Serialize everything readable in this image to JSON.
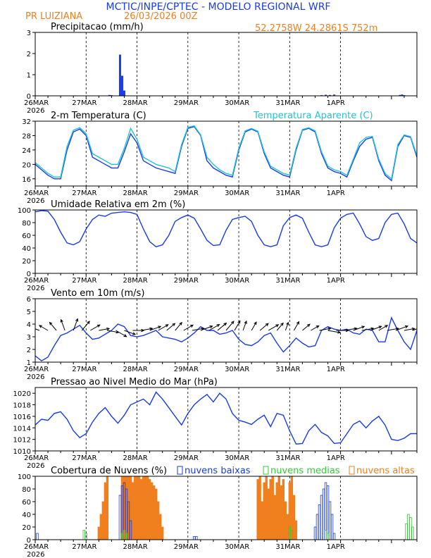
{
  "header": {
    "title": "MCTIC/INPE/CPTEC - MODELO REGIONAL WRF",
    "station": "PR LUIZIANA",
    "run": "26/03/2026 00Z",
    "coords": "52.2758W  24.2861S  752m"
  },
  "colors": {
    "title": "#1a3be8",
    "orange": "#f07f1e",
    "blue": "#1a3be8",
    "cyan": "#22c2d8",
    "green": "#33cc33",
    "black": "#000000"
  },
  "x_axis": {
    "range_hours": [
      0,
      180
    ],
    "ticks": [
      {
        "h": 0,
        "label": "26MAR",
        "year": "2026"
      },
      {
        "h": 24,
        "label": "27MAR"
      },
      {
        "h": 48,
        "label": "28MAR"
      },
      {
        "h": 72,
        "label": "29MAR"
      },
      {
        "h": 96,
        "label": "30MAR"
      },
      {
        "h": 120,
        "label": "31MAR"
      },
      {
        "h": 144,
        "label": "1APR"
      }
    ]
  },
  "chart_data": [
    {
      "type": "bar",
      "key": "precip",
      "title": "Precipitacao (mm/h)",
      "ylim": [
        0,
        3
      ],
      "yticks": [
        0,
        1,
        2,
        3
      ],
      "x_hours": [
        19,
        35,
        36,
        40,
        41,
        42,
        135,
        137,
        139,
        141,
        172,
        173,
        174
      ],
      "values": [
        0.02,
        0.04,
        0.03,
        1.95,
        0.95,
        0.25,
        0.03,
        0.05,
        0.04,
        0.06,
        0.04,
        0.06,
        0.03
      ]
    },
    {
      "type": "line",
      "key": "temp",
      "title": "2-m Temperatura (C)",
      "legend": "Temperatura Aparente (C)",
      "ylim": [
        14,
        32
      ],
      "yticks": [
        16,
        20,
        24,
        28,
        32
      ],
      "x_hours": [
        0,
        3,
        6,
        9,
        12,
        15,
        18,
        21,
        24,
        27,
        30,
        33,
        36,
        39,
        42,
        45,
        48,
        51,
        54,
        57,
        60,
        63,
        66,
        69,
        72,
        75,
        78,
        81,
        84,
        87,
        90,
        93,
        96,
        99,
        102,
        105,
        108,
        111,
        114,
        117,
        120,
        123,
        126,
        129,
        132,
        135,
        138,
        141,
        144,
        147,
        150,
        153,
        156,
        159,
        162,
        165,
        168,
        171,
        174,
        177,
        180
      ],
      "series": [
        {
          "name": "Temperatura",
          "color": "blue",
          "values": [
            20,
            18.5,
            17,
            16,
            16,
            24,
            29,
            29.8,
            28,
            22,
            21,
            20,
            19,
            19,
            23.5,
            28.5,
            26,
            21,
            20,
            19,
            18.5,
            18,
            17.5,
            25,
            30,
            30.5,
            28,
            21,
            19,
            18,
            17,
            16.5,
            24,
            29,
            29.8,
            29,
            23,
            19,
            18,
            17,
            16.5,
            24,
            29.5,
            30,
            29,
            23,
            19,
            18,
            17.5,
            16.5,
            21,
            25,
            27,
            27.5,
            21,
            17,
            15.5,
            25,
            28,
            27.5,
            22
          ]
        },
        {
          "name": "Temperatura Aparente",
          "color": "cyan",
          "values": [
            20.5,
            19,
            17.5,
            16.5,
            16.5,
            25,
            29.5,
            30.2,
            28.5,
            23,
            22,
            21,
            20,
            20,
            24.5,
            30,
            27,
            22,
            21,
            20,
            19.5,
            19,
            18,
            25.5,
            30.3,
            30.7,
            28.2,
            22,
            20,
            18.5,
            17.5,
            17,
            24.5,
            29.3,
            30,
            29.2,
            23.5,
            19.5,
            18.5,
            17.5,
            17,
            24.5,
            29.7,
            30.2,
            29.3,
            23.5,
            19.5,
            18.5,
            18,
            17,
            21.5,
            26,
            27.5,
            27.8,
            21.5,
            17.5,
            16,
            25.5,
            28.2,
            27.7,
            22.5
          ]
        }
      ]
    },
    {
      "type": "line",
      "key": "rh",
      "title": "Umidade Relativa em 2m (%)",
      "ylim": [
        0,
        100
      ],
      "yticks": [
        0,
        20,
        40,
        60,
        80,
        100
      ],
      "x_hours": [
        0,
        3,
        6,
        9,
        12,
        15,
        18,
        21,
        24,
        27,
        30,
        33,
        36,
        39,
        42,
        45,
        48,
        51,
        54,
        57,
        60,
        63,
        66,
        69,
        72,
        75,
        78,
        81,
        84,
        87,
        90,
        93,
        96,
        99,
        102,
        105,
        108,
        111,
        114,
        117,
        120,
        123,
        126,
        129,
        132,
        135,
        138,
        141,
        144,
        147,
        150,
        153,
        156,
        159,
        162,
        165,
        168,
        171,
        174,
        177,
        180
      ],
      "series": [
        {
          "name": "Umidade Relativa",
          "color": "blue",
          "values": [
            97,
            99,
            98,
            85,
            65,
            48,
            45,
            50,
            70,
            85,
            92,
            90,
            95,
            96,
            97,
            96,
            93,
            70,
            50,
            42,
            45,
            60,
            82,
            88,
            92,
            87,
            70,
            52,
            44,
            45,
            68,
            85,
            88,
            90,
            82,
            60,
            45,
            42,
            45,
            75,
            88,
            92,
            87,
            65,
            45,
            42,
            45,
            72,
            87,
            93,
            95,
            78,
            58,
            52,
            55,
            80,
            93,
            95,
            78,
            55,
            48
          ]
        }
      ]
    },
    {
      "type": "line",
      "key": "wind",
      "title": "Vento em 10m (m/s)",
      "ylim": [
        1,
        6
      ],
      "yticks": [
        1,
        2,
        3,
        4,
        5,
        6
      ],
      "x_hours": [
        0,
        3,
        6,
        9,
        12,
        15,
        18,
        21,
        24,
        27,
        30,
        33,
        36,
        39,
        42,
        45,
        48,
        51,
        54,
        57,
        60,
        63,
        66,
        69,
        72,
        75,
        78,
        81,
        84,
        87,
        90,
        93,
        96,
        99,
        102,
        105,
        108,
        111,
        114,
        117,
        120,
        123,
        126,
        129,
        132,
        135,
        138,
        141,
        144,
        147,
        150,
        153,
        156,
        159,
        162,
        165,
        168,
        171,
        174,
        177,
        180
      ],
      "series": [
        {
          "name": "Velocidade do vento",
          "color": "blue",
          "values": [
            1.5,
            1.1,
            1.4,
            2.3,
            3.1,
            3.3,
            3.6,
            3.9,
            3.3,
            2.8,
            2.9,
            3.2,
            3.5,
            4.0,
            3.8,
            3.1,
            3.0,
            3.1,
            3.3,
            3.5,
            3.0,
            2.9,
            2.8,
            2.6,
            2.9,
            3.3,
            3.8,
            3.5,
            3.5,
            3.2,
            3.3,
            3.5,
            2.8,
            2.4,
            2.3,
            2.6,
            3.1,
            3.3,
            2.5,
            1.8,
            2.3,
            2.9,
            2.5,
            2.2,
            2.3,
            3.5,
            3.8,
            3.6,
            3.5,
            3.6,
            3.3,
            3.2,
            3.6,
            3.5,
            2.6,
            2.6,
            4.5,
            3.5,
            2.6,
            2.0,
            3.5
          ]
        }
      ],
      "arrow_baseline": 3.5,
      "arrows": [
        {
          "h": 2,
          "dir": 290,
          "spd": 2.2
        },
        {
          "h": 6,
          "dir": 300,
          "spd": 2.5
        },
        {
          "h": 10,
          "dir": 320,
          "spd": 2.8
        },
        {
          "h": 14,
          "dir": 340,
          "spd": 3.2
        },
        {
          "h": 18,
          "dir": 20,
          "spd": 3.6
        },
        {
          "h": 22,
          "dir": 40,
          "spd": 3.4
        },
        {
          "h": 26,
          "dir": 60,
          "spd": 3.0
        },
        {
          "h": 30,
          "dir": 80,
          "spd": 2.8
        },
        {
          "h": 34,
          "dir": 100,
          "spd": 3.2
        },
        {
          "h": 38,
          "dir": 120,
          "spd": 3.6
        },
        {
          "h": 42,
          "dir": 110,
          "spd": 3.3
        },
        {
          "h": 46,
          "dir": 90,
          "spd": 3.0
        },
        {
          "h": 50,
          "dir": 80,
          "spd": 3.1
        },
        {
          "h": 54,
          "dir": 70,
          "spd": 3.3
        },
        {
          "h": 58,
          "dir": 60,
          "spd": 3.2
        },
        {
          "h": 62,
          "dir": 50,
          "spd": 2.9
        },
        {
          "h": 66,
          "dir": 40,
          "spd": 2.7
        },
        {
          "h": 70,
          "dir": 60,
          "spd": 2.9
        },
        {
          "h": 74,
          "dir": 80,
          "spd": 3.4
        },
        {
          "h": 78,
          "dir": 70,
          "spd": 3.7
        },
        {
          "h": 82,
          "dir": 60,
          "spd": 3.4
        },
        {
          "h": 86,
          "dir": 50,
          "spd": 3.2
        },
        {
          "h": 90,
          "dir": 40,
          "spd": 3.4
        },
        {
          "h": 94,
          "dir": 30,
          "spd": 3.0
        },
        {
          "h": 98,
          "dir": 20,
          "spd": 2.5
        },
        {
          "h": 102,
          "dir": 30,
          "spd": 2.4
        },
        {
          "h": 106,
          "dir": 50,
          "spd": 2.9
        },
        {
          "h": 110,
          "dir": 60,
          "spd": 3.2
        },
        {
          "h": 114,
          "dir": 40,
          "spd": 2.4
        },
        {
          "h": 118,
          "dir": 20,
          "spd": 1.9
        },
        {
          "h": 122,
          "dir": 30,
          "spd": 2.6
        },
        {
          "h": 126,
          "dir": 50,
          "spd": 2.4
        },
        {
          "h": 130,
          "dir": 60,
          "spd": 2.2
        },
        {
          "h": 134,
          "dir": 80,
          "spd": 3.2
        },
        {
          "h": 138,
          "dir": 100,
          "spd": 3.7
        },
        {
          "h": 142,
          "dir": 90,
          "spd": 3.5
        },
        {
          "h": 146,
          "dir": 80,
          "spd": 3.5
        },
        {
          "h": 150,
          "dir": 70,
          "spd": 3.3
        },
        {
          "h": 154,
          "dir": 80,
          "spd": 3.4
        },
        {
          "h": 158,
          "dir": 70,
          "spd": 3.4
        },
        {
          "h": 162,
          "dir": 60,
          "spd": 2.6
        },
        {
          "h": 166,
          "dir": 80,
          "spd": 3.2
        },
        {
          "h": 170,
          "dir": 70,
          "spd": 3.8
        },
        {
          "h": 174,
          "dir": 80,
          "spd": 2.8
        },
        {
          "h": 178,
          "dir": 70,
          "spd": 2.4
        }
      ]
    },
    {
      "type": "line",
      "key": "pres",
      "title": "Pressao ao Nivel Medio do Mar (hPa)",
      "ylim": [
        1010,
        1021
      ],
      "yticks": [
        1010,
        1012,
        1014,
        1016,
        1018,
        1020
      ],
      "x_hours": [
        0,
        3,
        6,
        9,
        12,
        15,
        18,
        21,
        24,
        27,
        30,
        33,
        36,
        39,
        42,
        45,
        48,
        51,
        54,
        57,
        60,
        63,
        66,
        69,
        72,
        75,
        78,
        81,
        84,
        87,
        90,
        93,
        96,
        99,
        102,
        105,
        108,
        111,
        114,
        117,
        120,
        123,
        126,
        129,
        132,
        135,
        138,
        141,
        144,
        147,
        150,
        153,
        156,
        159,
        162,
        165,
        168,
        171,
        174,
        177,
        180
      ],
      "series": [
        {
          "name": "Pressao",
          "color": "blue",
          "values": [
            1014.5,
            1015.5,
            1015.3,
            1016.5,
            1016.8,
            1015.5,
            1013.5,
            1012.3,
            1013,
            1015,
            1016.5,
            1017.5,
            1016,
            1014.8,
            1016.2,
            1018,
            1018.5,
            1019,
            1018,
            1020.2,
            1019,
            1017.5,
            1016,
            1014.5,
            1016.5,
            1018,
            1019,
            1019.8,
            1018.5,
            1020,
            1019,
            1016.5,
            1015.3,
            1015,
            1014.6,
            1015.5,
            1016.2,
            1014.2,
            1016.5,
            1016.2,
            1013.5,
            1011.2,
            1011.3,
            1013.5,
            1014.6,
            1013.2,
            1012.6,
            1011.3,
            1011.4,
            1013,
            1014.6,
            1015.2,
            1014,
            1015.2,
            1016,
            1014.5,
            1012,
            1011.8,
            1012.2,
            1013,
            1013
          ]
        }
      ]
    },
    {
      "type": "bar",
      "key": "cloud",
      "title": "Cobertura de Nuvens (%)",
      "ylim": [
        0,
        100
      ],
      "yticks": [
        0,
        20,
        40,
        60,
        80,
        100
      ],
      "legend": [
        {
          "label": "nuvens baixas",
          "color": "blue"
        },
        {
          "label": "nuvens medias",
          "color": "green"
        },
        {
          "label": "nuvens altas",
          "color": "orange"
        }
      ],
      "series": [
        {
          "name": "nuvens altas",
          "color": "orange",
          "x_hours": [
            30,
            31,
            32,
            33,
            34,
            41,
            42,
            43,
            44,
            45,
            46,
            47,
            48,
            49,
            50,
            51,
            52,
            53,
            54,
            55,
            56,
            57,
            58,
            59,
            60,
            105,
            106,
            107,
            108,
            109,
            110,
            111,
            112,
            113,
            114,
            115,
            116,
            117,
            118,
            119,
            120,
            121,
            122,
            123
          ],
          "values": [
            20,
            40,
            60,
            90,
            100,
            100,
            100,
            100,
            100,
            100,
            90,
            100,
            100,
            100,
            95,
            100,
            100,
            100,
            95,
            90,
            85,
            80,
            60,
            40,
            20,
            95,
            100,
            60,
            90,
            100,
            80,
            95,
            100,
            70,
            90,
            100,
            85,
            95,
            60,
            40,
            90,
            100,
            70,
            30
          ]
        },
        {
          "name": "nuvens baixas",
          "color": "blue",
          "x_hours": [
            1,
            40,
            41,
            42,
            43,
            44,
            45,
            75,
            76,
            132,
            133,
            134,
            135,
            136,
            137,
            138,
            139,
            140,
            141
          ],
          "values": [
            10,
            70,
            85,
            90,
            80,
            60,
            30,
            5,
            5,
            20,
            40,
            55,
            70,
            80,
            90,
            85,
            60,
            40,
            10
          ]
        },
        {
          "name": "nuvens medias",
          "color": "green",
          "x_hours": [
            23,
            24,
            41,
            42,
            43,
            120,
            121,
            137,
            138,
            175,
            176,
            177,
            178
          ],
          "values": [
            15,
            10,
            10,
            15,
            10,
            20,
            15,
            15,
            10,
            25,
            40,
            35,
            20
          ]
        }
      ]
    }
  ]
}
